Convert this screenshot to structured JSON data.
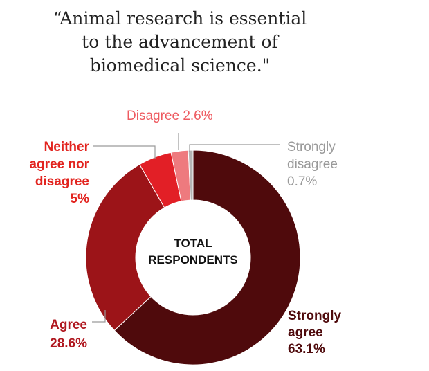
{
  "title": {
    "line1": "“Animal research is essential",
    "line2": "to the advancement of",
    "line3": "biomedical science.\""
  },
  "center_label": [
    "TOTAL",
    "RESPONDENTS"
  ],
  "chart_data": {
    "type": "pie",
    "donut": true,
    "title": "“Animal research is essential to the advancement of biomedical science.\"",
    "slices": [
      {
        "label": "Strongly agree",
        "value": 63.1,
        "value_text": "63.1%",
        "color": "#4f0a0c",
        "label_color": "#4f0a0c",
        "label_lines": [
          "Strongly",
          "agree",
          "63.1%"
        ]
      },
      {
        "label": "Agree",
        "value": 28.6,
        "value_text": "28.6%",
        "color": "#9c1418",
        "label_color": "#b01820",
        "label_lines": [
          "Agree",
          "28.6%"
        ]
      },
      {
        "label": "Neither agree nor disagree",
        "value": 5,
        "value_text": "5%",
        "color": "#e21f26",
        "label_color": "#e2241f",
        "label_lines": [
          "Neither",
          "agree nor",
          "disagree",
          "5%"
        ]
      },
      {
        "label": "Disagree",
        "value": 2.6,
        "value_text": "2.6%",
        "color": "#ee7a7e",
        "label_color": "#ee5a60",
        "label_lines": [
          "Disagree 2.6%"
        ]
      },
      {
        "label": "Strongly disagree",
        "value": 0.7,
        "value_text": "0.7%",
        "color": "#b4b4b4",
        "label_color": "#999999",
        "label_lines": [
          "Strongly",
          "disagree",
          "0.7%"
        ]
      }
    ]
  }
}
